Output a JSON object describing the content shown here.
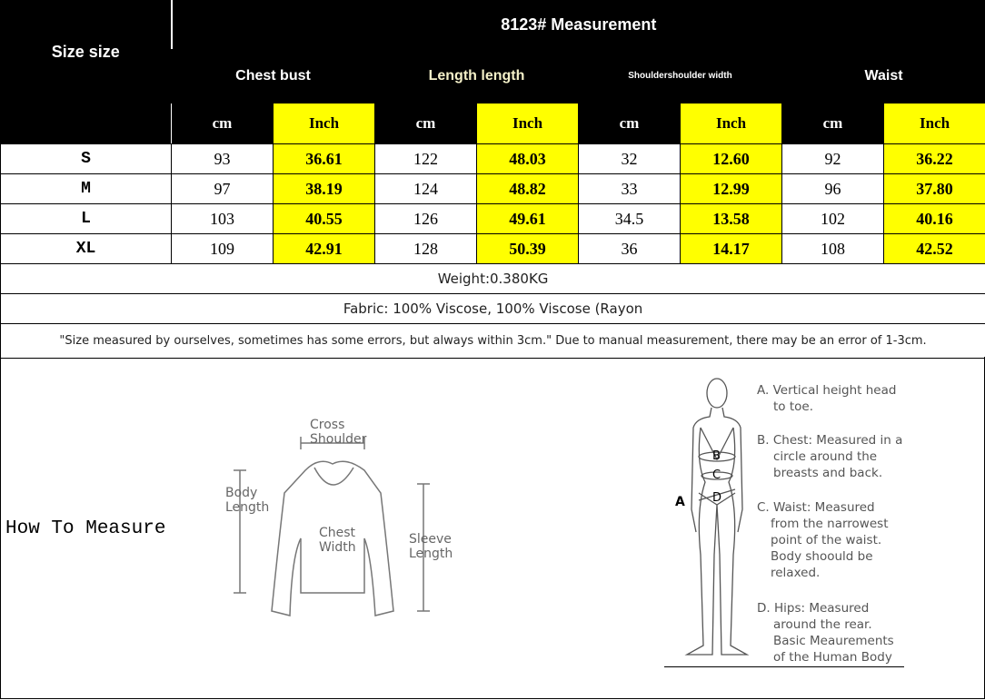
{
  "title": "8123# Measurement",
  "size_header": "Size size",
  "groups": [
    "Chest bust",
    "Length length",
    "Shouldershoulder width",
    "Waist"
  ],
  "units": {
    "cm": "cm",
    "inch": "Inch"
  },
  "rows": [
    {
      "size": "S",
      "values": [
        "93",
        "36.61",
        "122",
        "48.03",
        "32",
        "12.60",
        "92",
        "36.22"
      ]
    },
    {
      "size": "M",
      "values": [
        "97",
        "38.19",
        "124",
        "48.82",
        "33",
        "12.99",
        "96",
        "37.80"
      ]
    },
    {
      "size": "L",
      "values": [
        "103",
        "40.55",
        "126",
        "49.61",
        "34.5",
        "13.58",
        "102",
        "40.16"
      ]
    },
    {
      "size": "XL",
      "values": [
        "109",
        "42.91",
        "128",
        "50.39",
        "36",
        "14.17",
        "108",
        "42.52"
      ]
    }
  ],
  "weight": "Weight:0.380KG",
  "fabric": "Fabric: 100% Viscose, 100% Viscose (Rayon",
  "note": "\"Size measured by ourselves, sometimes has some errors, but always within 3cm.\" Due to manual measurement, there may be an error of 1-3cm.",
  "how_to_measure": "How To Measure",
  "sweater_labels": {
    "cross_shoulder": "Cross\nShoulder",
    "body_length": "Body\nLength",
    "chest_width": "Chest\nWidth",
    "sleeve_length": "Sleeve\nLength"
  },
  "body_letters": [
    "A",
    "B",
    "C",
    "D"
  ],
  "body_desc": [
    {
      "head": "A. Vertical height head",
      "cont": "to toe."
    },
    {
      "head": "B. Chest: Measured in a",
      "cont": "circle around the\nbreasts and back."
    },
    {
      "head": "C. Waist: Measured",
      "cont": "from the narrowest\npoint of the waist.\nBody shoould be\nrelaxed."
    },
    {
      "head": "D. Hips: Measured",
      "cont": "around the rear.\nBasic Meaurements\nof the Human Body"
    }
  ],
  "colors": {
    "header_bg": "#000000",
    "inch_bg": "#ffff00"
  }
}
